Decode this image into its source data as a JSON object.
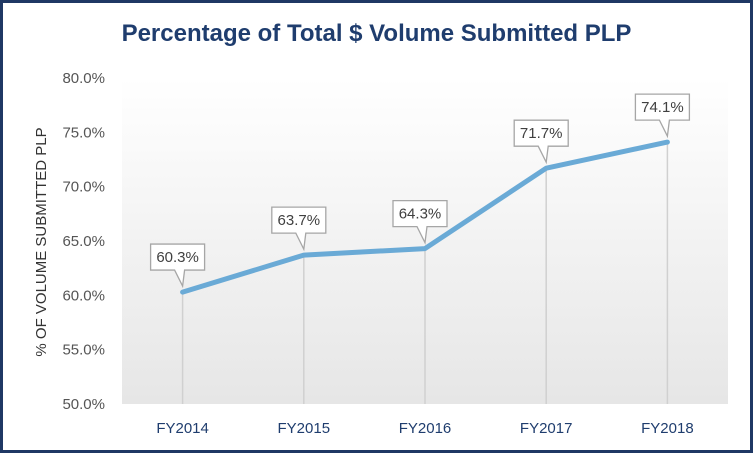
{
  "chart_data": {
    "type": "line",
    "title": "Percentage of Total $ Volume Submitted PLP",
    "xlabel": "",
    "ylabel": "% OF VOLUME SUBMITTED PLP",
    "categories": [
      "FY2014",
      "FY2015",
      "FY2016",
      "FY2017",
      "FY2018"
    ],
    "series": [
      {
        "values": [
          60.3,
          63.7,
          64.3,
          71.7,
          74.1
        ],
        "labels": [
          "60.3%",
          "63.7%",
          "64.3%",
          "71.7%",
          "74.1%"
        ]
      }
    ],
    "ylim": [
      50,
      80
    ],
    "yticks": [
      80,
      75,
      70,
      65,
      60,
      55,
      50
    ],
    "ytick_labels": [
      "80.0%",
      "75.0%",
      "70.0%",
      "65.0%",
      "60.0%",
      "55.0%",
      "50.0%"
    ],
    "grid": false,
    "drop_lines": true,
    "colors": {
      "line": "#6aaad6",
      "frame": "#1f3864",
      "title": "#1f3d6e"
    }
  }
}
